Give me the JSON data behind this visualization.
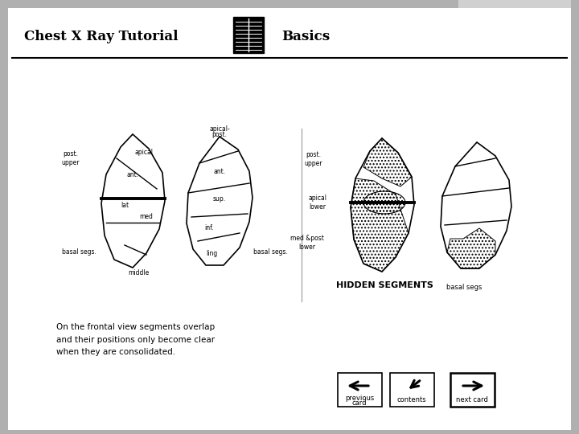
{
  "title": "Chest X Ray Tutorial",
  "subtitle": "Basics",
  "bg_color": "#b0b0b0",
  "card_color": "#ffffff",
  "text_body": "On the frontal view segments overlap\nand their positions only become clear\nwhen they are consolidated.",
  "hidden_segments_label": "HIDDEN SEGMENTS",
  "basal_segs_label": "basal segs",
  "header_line_color": "#000000",
  "font_color": "#000000",
  "tab_color": "#d0d0d0"
}
